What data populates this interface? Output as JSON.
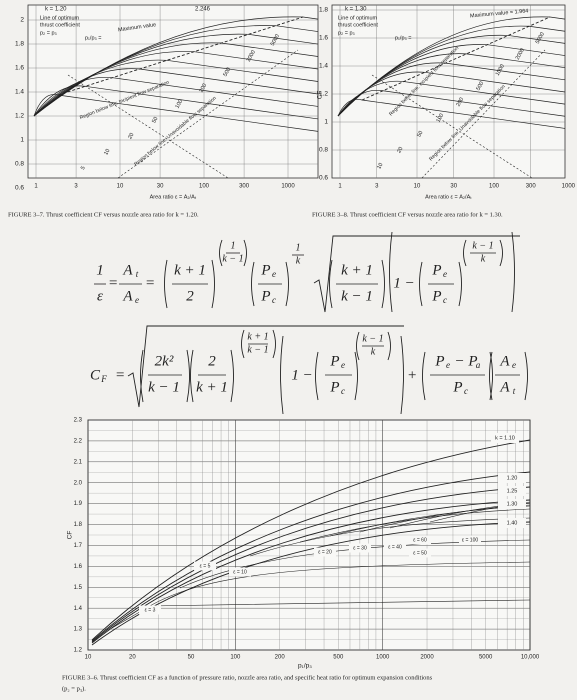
{
  "figure_3_7": {
    "annotations": [
      "k = 1.20",
      "Line of optimum",
      "thrust coefficient",
      "p₂ = p₃",
      "Maximum value",
      "2.246",
      "p₁/p₃ =",
      "Region below line: Incipient flow separation",
      "Region below line: Unavoidable flow separation"
    ],
    "curve_labels": [
      "5000",
      "2000",
      "500",
      "200",
      "100",
      "50",
      "20",
      "10",
      "5"
    ],
    "y_ticks": [
      "2",
      "1.8",
      "1.6",
      "1.4",
      "1.2",
      "1",
      "0.8",
      "0.6"
    ],
    "x_ticks": [
      "1",
      "3",
      "10",
      "30",
      "100",
      "300",
      "1000"
    ],
    "x_label": "Area ratio ε = A₂/Aₜ",
    "caption": "FIGURE 3–7. Thrust coefficient CF versus nozzle area ratio for k = 1.20."
  },
  "figure_3_8": {
    "annotations": [
      "k = 1.30",
      "Line of optimum",
      "thrust coefficient",
      "p₂ = p₃",
      "Maximum value = 1.964",
      "p₁/p₃ =",
      "Region below line: Incipient flow separation",
      "Region below line: Unavoidable flow separation"
    ],
    "curve_labels": [
      "5000",
      "2000",
      "1000",
      "500",
      "200",
      "100",
      "50",
      "20",
      "10"
    ],
    "y_ticks": [
      "1.8",
      "1.6",
      "1.4",
      "1.2",
      "1",
      "0.8",
      "0.6"
    ],
    "y_label": "CF",
    "x_ticks": [
      "1",
      "3",
      "10",
      "30",
      "100",
      "300",
      "1000"
    ],
    "x_label": "Area ratio ε = A₂/Aₜ",
    "caption": "FIGURE 3–8. Thrust coefficient CF versus nozzle area ratio for k = 1.30."
  },
  "equation_1": [
    "1",
    "ε",
    "=",
    "A",
    "t",
    "A",
    "e",
    "=",
    "k + 1",
    "2",
    "1",
    "k − 1",
    "P",
    "e",
    "P",
    "c",
    "1",
    "k",
    "k + 1",
    "k − 1",
    "1 −",
    "P",
    "e",
    "P",
    "c",
    "k − 1",
    "k"
  ],
  "equation_2": [
    "C",
    "F",
    "=",
    "2k²",
    "k − 1",
    "2",
    "k + 1",
    "k + 1",
    "k − 1",
    "1 −",
    "P",
    "e",
    "P",
    "c",
    "k − 1",
    "k",
    "+",
    "P",
    "e",
    "− P",
    "a",
    "P",
    "c",
    "A",
    "e",
    "A",
    "t"
  ],
  "figure_3_6": {
    "y_ticks": [
      "2.3",
      "2.2",
      "2.1",
      "2.0",
      "1.9",
      "1.8",
      "1.7",
      "1.6",
      "1.5",
      "1.4",
      "1.3",
      "1.2"
    ],
    "y_label": "CF",
    "x_ticks": [
      "10",
      "20",
      "50",
      "100",
      "200",
      "500",
      "1000",
      "2000",
      "5000",
      "10,000"
    ],
    "x_label": "p₁/p₃",
    "k_labels": [
      "k = 1.10",
      "1.20",
      "1.25",
      "1.30",
      "1.40"
    ],
    "area_labels": [
      "ε = 3",
      "ε = 5",
      "ε = 10",
      "ε = 20",
      "ε = 30",
      "ε = 40",
      "ε = 50",
      "ε = 60",
      "ε = 100"
    ],
    "caption": [
      "FIGURE 3–6. Thrust coefficient CF as a function of pressure ratio, nozzle area ratio, and specific heat ratio for optimum expansion conditions",
      "(p₂ = p₃)."
    ]
  }
}
